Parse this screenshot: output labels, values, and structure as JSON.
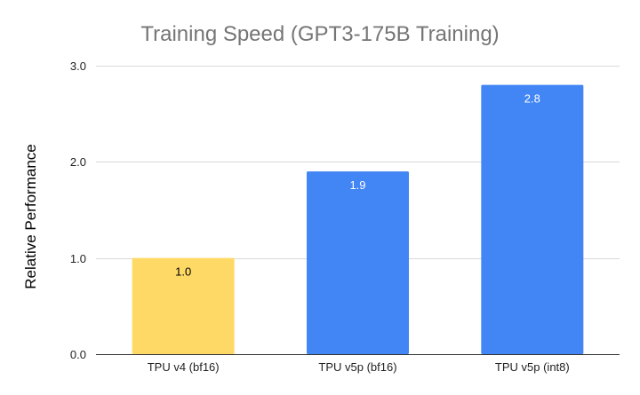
{
  "chart_data": {
    "type": "bar",
    "title": "Training Speed (GPT3-175B Training)",
    "xlabel": "",
    "ylabel": "Relative Performance",
    "categories": [
      "TPU v4 (bf16)",
      "TPU v5p (bf16)",
      "TPU v5p (int8)"
    ],
    "values": [
      1.0,
      1.9,
      2.8
    ],
    "data_labels": [
      "1.0",
      "1.9",
      "2.8"
    ],
    "bar_colors": [
      "#FFD966",
      "#4285F4",
      "#4285F4"
    ],
    "data_label_colors": [
      "#000000",
      "#ffffff",
      "#ffffff"
    ],
    "ylim": [
      0,
      3
    ],
    "yticks": [
      0,
      1,
      2,
      3
    ],
    "ytick_labels": [
      "0.0",
      "1.0",
      "2.0",
      "3.0"
    ],
    "grid": true,
    "legend": "none"
  }
}
